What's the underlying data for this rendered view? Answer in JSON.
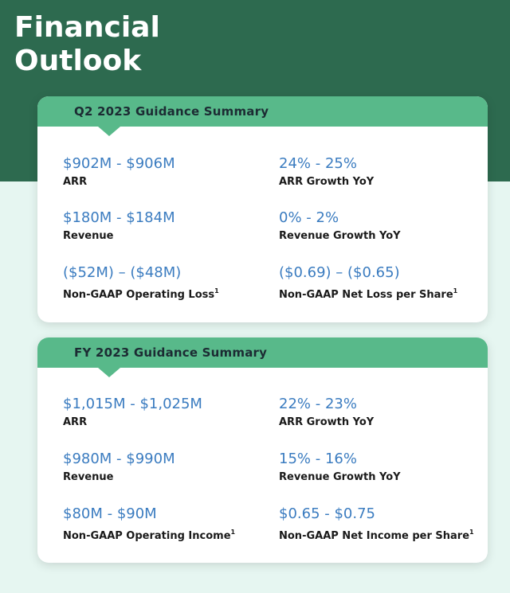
{
  "title_lines": [
    "Financial",
    "Outlook"
  ],
  "cards": [
    {
      "title": "Q2 2023 Guidance Summary",
      "metrics": [
        {
          "value": "$902M - $906M",
          "label": "ARR",
          "sup": ""
        },
        {
          "value": "24% - 25%",
          "label": "ARR Growth YoY",
          "sup": ""
        },
        {
          "value": "$180M - $184M",
          "label": "Revenue",
          "sup": ""
        },
        {
          "value": "0% - 2%",
          "label": "Revenue Growth YoY",
          "sup": ""
        },
        {
          "value": "($52M) – ($48M)",
          "label": "Non-GAAP Operating Loss",
          "sup": "1"
        },
        {
          "value": "($0.69) – ($0.65)",
          "label": "Non-GAAP Net Loss per Share",
          "sup": "1"
        }
      ]
    },
    {
      "title": "FY 2023 Guidance Summary",
      "metrics": [
        {
          "value": "$1,015M - $1,025M",
          "label": "ARR",
          "sup": ""
        },
        {
          "value": "22% - 23%",
          "label": "ARR Growth YoY",
          "sup": ""
        },
        {
          "value": "$980M - $990M",
          "label": "Revenue",
          "sup": ""
        },
        {
          "value": "15% - 16%",
          "label": "Revenue Growth YoY",
          "sup": ""
        },
        {
          "value": "$80M - $90M",
          "label": "Non-GAAP Operating Income",
          "sup": "1"
        },
        {
          "value": "$0.65 - $0.75",
          "label": "Non-GAAP Net Income per Share",
          "sup": "1"
        }
      ]
    }
  ],
  "colors": {
    "header_band": "#2d6a4f",
    "background": "#e6f6f1",
    "card_header": "#58b98a",
    "value_text": "#3b7cc0"
  }
}
